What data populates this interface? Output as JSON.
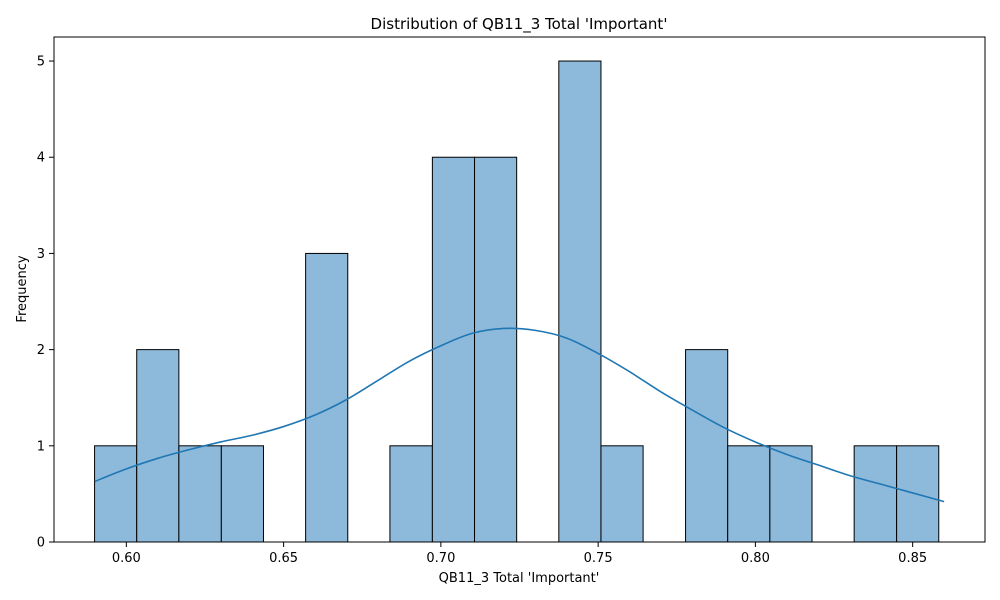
{
  "chart_data": {
    "type": "bar",
    "subtype": "histogram",
    "title": "Distribution of QB11_3 Total 'Important'",
    "xlabel": "QB11_3 Total 'Important'",
    "ylabel": "Frequency",
    "xlim": [
      0.577,
      0.873
    ],
    "ylim": [
      0,
      5.25
    ],
    "xticks": [
      0.6,
      0.65,
      0.7,
      0.75,
      0.8,
      0.85
    ],
    "xtick_labels": [
      "0.60",
      "0.65",
      "0.70",
      "0.75",
      "0.80",
      "0.85"
    ],
    "yticks": [
      0,
      1,
      2,
      3,
      4,
      5
    ],
    "ytick_labels": [
      "0",
      "1",
      "2",
      "3",
      "4",
      "5"
    ],
    "bin_edges": [
      0.5899,
      0.6033,
      0.6167,
      0.6302,
      0.6436,
      0.657,
      0.6704,
      0.6838,
      0.6973,
      0.7107,
      0.7241,
      0.7375,
      0.7509,
      0.7643,
      0.7778,
      0.7912,
      0.8046,
      0.818,
      0.8314,
      0.8449,
      0.8583
    ],
    "counts": [
      1,
      2,
      1,
      1,
      0,
      3,
      0,
      1,
      4,
      4,
      0,
      5,
      1,
      0,
      2,
      1,
      1,
      0,
      1,
      1
    ],
    "kde": {
      "x": [
        0.59,
        0.6,
        0.61,
        0.62,
        0.63,
        0.64,
        0.65,
        0.66,
        0.67,
        0.68,
        0.69,
        0.7,
        0.71,
        0.72,
        0.73,
        0.74,
        0.75,
        0.76,
        0.77,
        0.78,
        0.79,
        0.8,
        0.81,
        0.82,
        0.83,
        0.84,
        0.85,
        0.86
      ],
      "y": [
        0.63,
        0.76,
        0.87,
        0.96,
        1.04,
        1.11,
        1.2,
        1.32,
        1.48,
        1.68,
        1.88,
        2.04,
        2.17,
        2.22,
        2.2,
        2.12,
        1.96,
        1.77,
        1.56,
        1.37,
        1.19,
        1.04,
        0.91,
        0.8,
        0.69,
        0.6,
        0.51,
        0.42
      ]
    },
    "grid": false,
    "colors": {
      "bar_fill": "#8db9db",
      "bar_edge": "#000000",
      "kde_line": "#1f77b4"
    }
  }
}
